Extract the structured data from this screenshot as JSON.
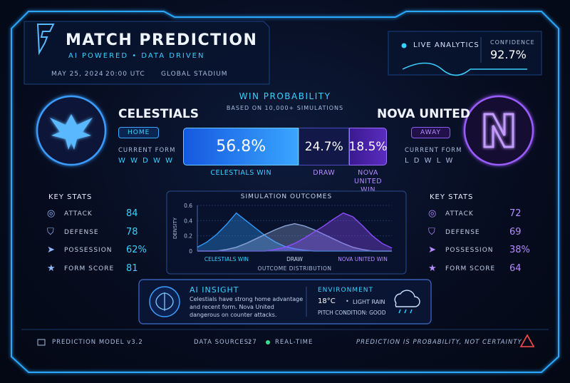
{
  "header": {
    "title": "MATCH PREDICTION",
    "tagline": "AI POWERED • DATA DRIVEN",
    "date": "MAY 25, 2024",
    "time": "20:00 UTC",
    "venue": "GLOBAL STADIUM"
  },
  "analytics": {
    "live": "LIVE ANALYTICS",
    "confidence_label": "CONFIDENCE",
    "confidence": "92.7%"
  },
  "home": {
    "name": "CELESTIALS",
    "badge": "HOME",
    "form_label": "CURRENT FORM",
    "form": "W W D W W"
  },
  "away": {
    "name": "NOVA UNITED",
    "badge": "AWAY",
    "form_label": "CURRENT FORM",
    "form": "L D W L W"
  },
  "win_probability": {
    "title": "WIN PROBABILITY",
    "subtitle": "BASED ON 10,000+ SIMULATIONS",
    "segments": [
      {
        "name": "CELESTIALS WIN",
        "value": 56.8,
        "label": "56.8%"
      },
      {
        "name": "DRAW",
        "value": 24.7,
        "label": "24.7%"
      },
      {
        "name": "NOVA UNITED WIN",
        "value": 18.5,
        "label": "18.5%"
      }
    ]
  },
  "home_stats": {
    "title": "KEY STATS",
    "items": [
      {
        "label": "ATTACK",
        "value": 84
      },
      {
        "label": "DEFENSE",
        "value": 78
      },
      {
        "label": "POSSESSION",
        "value": "62%"
      },
      {
        "label": "FORM SCORE",
        "value": 81
      }
    ]
  },
  "away_stats": {
    "title": "KEY STATS",
    "items": [
      {
        "label": "ATTACK",
        "value": 72
      },
      {
        "label": "DEFENSE",
        "value": 69
      },
      {
        "label": "POSSESSION",
        "value": "38%"
      },
      {
        "label": "FORM SCORE",
        "value": 64
      }
    ]
  },
  "simulation": {
    "type": "area",
    "title": "SIMULATION OUTCOMES",
    "ylabel": "DENSITY",
    "xlabel": "OUTCOME DISTRIBUTION",
    "ylim": [
      0,
      0.6
    ],
    "yticks": [
      0,
      0.2,
      0.4,
      0.6
    ],
    "categories": [
      null,
      null,
      null,
      "CELESTIALS WIN",
      null,
      null,
      null,
      null,
      null,
      null,
      "DRAW",
      null,
      null,
      null,
      null,
      null,
      null,
      "NOVA UNITED WIN",
      null,
      null,
      null
    ],
    "series": [
      {
        "name": "CELESTIALS WIN",
        "color": "#2f9bff",
        "values": [
          0.05,
          0.12,
          0.22,
          0.35,
          0.5,
          0.4,
          0.3,
          0.2,
          0.12,
          0.06,
          0.03,
          0.01,
          0,
          0,
          0,
          0,
          0,
          0,
          0,
          0,
          0
        ]
      },
      {
        "name": "DRAW",
        "color": "#8aa4d6",
        "values": [
          0,
          0,
          0,
          0.02,
          0.05,
          0.1,
          0.16,
          0.22,
          0.28,
          0.33,
          0.36,
          0.33,
          0.28,
          0.22,
          0.16,
          0.1,
          0.05,
          0.02,
          0,
          0,
          0
        ]
      },
      {
        "name": "NOVA UNITED WIN",
        "color": "#8b4dff",
        "values": [
          0,
          0,
          0,
          0,
          0,
          0,
          0,
          0,
          0.02,
          0.05,
          0.1,
          0.17,
          0.25,
          0.33,
          0.42,
          0.5,
          0.45,
          0.33,
          0.2,
          0.1,
          0.04
        ]
      }
    ]
  },
  "insight": {
    "title": "AI INSIGHT",
    "text": "Celestials have strong home advantage and recent form. Nova United dangerous on counter attacks."
  },
  "environment": {
    "title": "ENVIRONMENT",
    "temperature": "18°C",
    "weather": "LIGHT RAIN",
    "pitch": "PITCH CONDITION: GOOD"
  },
  "footer": {
    "model": "PREDICTION MODEL v3.2",
    "sources_label": "DATA SOURCES:",
    "sources": 27,
    "realtime": "REAL-TIME",
    "disclaimer": "PREDICTION IS PROBABILITY, NOT CERTAINTY"
  }
}
